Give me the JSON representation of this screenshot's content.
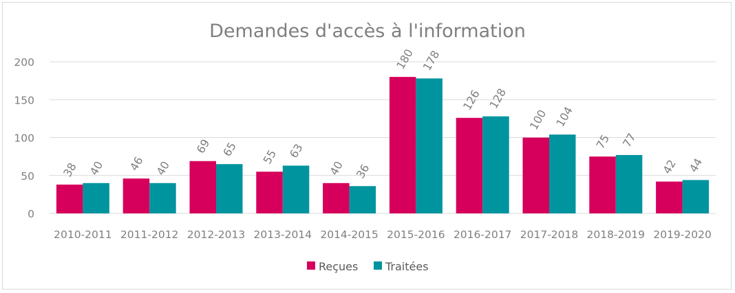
{
  "chart_data": {
    "type": "bar",
    "title": "Demandes d'accès à l'information",
    "xlabel": "",
    "ylabel": "",
    "categories": [
      "2010-2011",
      "2011-2012",
      "2012-2013",
      "2013-2014",
      "2014-2015",
      "2015-2016",
      "2016-2017",
      "2017-2018",
      "2018-2019",
      "2019-2020"
    ],
    "series": [
      {
        "name": "Reçues",
        "color": "#d6005c",
        "values": [
          38,
          46,
          69,
          55,
          40,
          180,
          126,
          100,
          75,
          42
        ]
      },
      {
        "name": "Traitées",
        "color": "#00949f",
        "values": [
          40,
          40,
          65,
          63,
          36,
          178,
          128,
          104,
          77,
          44
        ]
      }
    ],
    "ylim": [
      0,
      200
    ],
    "yticks": [
      "0",
      "50",
      "100",
      "150",
      "200"
    ],
    "grid": true,
    "legend_position": "bottom"
  }
}
